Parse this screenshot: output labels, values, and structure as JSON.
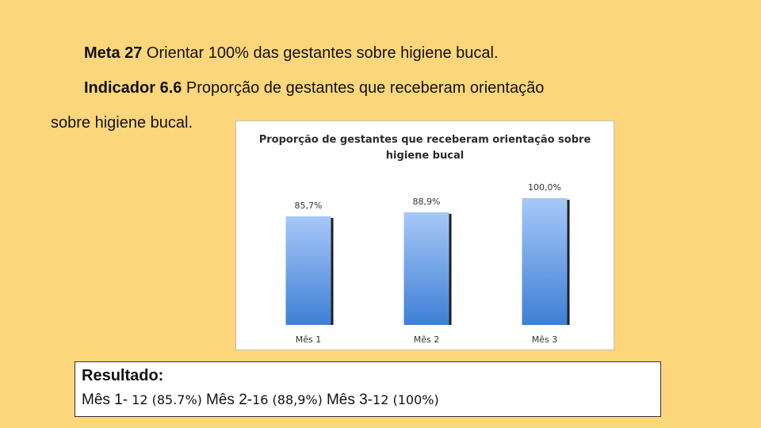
{
  "meta": {
    "label": "Meta 27",
    "text": " Orientar 100% das gestantes sobre higiene bucal."
  },
  "indicator": {
    "label": "Indicador 6.6",
    "text": " Proporção de gestantes que receberam   orientação",
    "continuation": "sobre higiene bucal."
  },
  "chart_data": {
    "type": "bar",
    "title_line1": "Proporção de gestantes que receberam  orientação sobre",
    "title_line2": "higiene bucal",
    "categories": [
      "Mês 1",
      "Mês 2",
      "Mês 3"
    ],
    "values": [
      85.7,
      88.9,
      100.0
    ],
    "value_labels": [
      "85,7%",
      "88,9%",
      "100,0%"
    ],
    "ylim": [
      0,
      100
    ],
    "bar_color_top": "#a7c8f7",
    "bar_color_bottom": "#3f7fd6",
    "grid": false,
    "legend": "none"
  },
  "result": {
    "title": "Resultado:",
    "m1_label": "Mês 1-",
    "m1_value": " 12 (85.7%) ",
    "m2_label": " Mês 2-",
    "m2_value": "16 (88,9%) ",
    "m3_label": " Mês 3-",
    "m3_value": "12 (100%)"
  }
}
